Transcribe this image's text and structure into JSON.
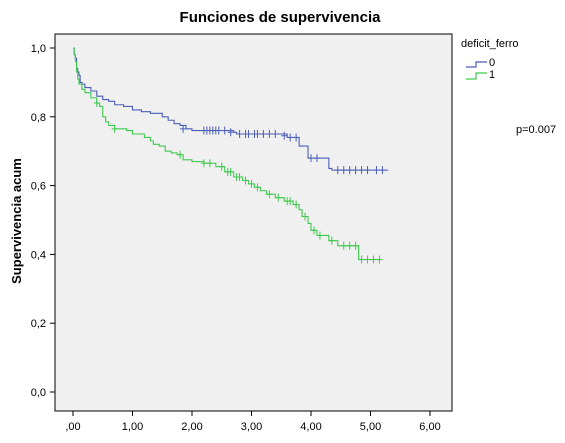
{
  "chart_data": {
    "type": "line",
    "title": "Funciones de supervivencia",
    "xlabel": "",
    "ylabel": "Supervivencia acum",
    "xlim": [
      0,
      6
    ],
    "ylim": [
      0,
      1
    ],
    "xticks": [
      0,
      1,
      2,
      3,
      4,
      5,
      6
    ],
    "xtick_labels": [
      ",00",
      "1,00",
      "2,00",
      "3,00",
      "4,00",
      "5,00",
      "6,00"
    ],
    "yticks": [
      0,
      0.2,
      0.4,
      0.6,
      0.8,
      1.0
    ],
    "ytick_labels": [
      "0,0",
      "0,2",
      "0,4",
      "0,6",
      "0,8",
      "1,0"
    ],
    "grid": false,
    "plot_background": "#f0f0f0",
    "legend": {
      "title": "deficit_ferro",
      "placement": "top-right"
    },
    "annotation": "p=0.007",
    "series": [
      {
        "name": "0",
        "color": "#4a5fb8",
        "steps": [
          [
            0,
            1.0
          ],
          [
            0.02,
            0.98
          ],
          [
            0.04,
            0.97
          ],
          [
            0.06,
            0.94
          ],
          [
            0.08,
            0.93
          ],
          [
            0.1,
            0.92
          ],
          [
            0.12,
            0.9
          ],
          [
            0.15,
            0.895
          ],
          [
            0.2,
            0.885
          ],
          [
            0.3,
            0.875
          ],
          [
            0.4,
            0.86
          ],
          [
            0.5,
            0.85
          ],
          [
            0.6,
            0.845
          ],
          [
            0.7,
            0.835
          ],
          [
            0.85,
            0.83
          ],
          [
            1.0,
            0.82
          ],
          [
            1.15,
            0.815
          ],
          [
            1.3,
            0.81
          ],
          [
            1.5,
            0.8
          ],
          [
            1.6,
            0.79
          ],
          [
            1.7,
            0.78
          ],
          [
            1.8,
            0.775
          ],
          [
            1.9,
            0.765
          ],
          [
            2.0,
            0.76
          ],
          [
            2.7,
            0.755
          ],
          [
            2.75,
            0.75
          ],
          [
            3.6,
            0.74
          ],
          [
            3.8,
            0.715
          ],
          [
            3.95,
            0.68
          ],
          [
            4.3,
            0.65
          ],
          [
            4.35,
            0.645
          ],
          [
            5.3,
            0.645
          ]
        ],
        "censored": [
          [
            1.85,
            0.765
          ],
          [
            2.2,
            0.76
          ],
          [
            2.25,
            0.76
          ],
          [
            2.3,
            0.76
          ],
          [
            2.35,
            0.76
          ],
          [
            2.4,
            0.76
          ],
          [
            2.45,
            0.76
          ],
          [
            2.55,
            0.76
          ],
          [
            2.65,
            0.755
          ],
          [
            2.8,
            0.75
          ],
          [
            2.9,
            0.75
          ],
          [
            2.95,
            0.75
          ],
          [
            3.05,
            0.75
          ],
          [
            3.1,
            0.75
          ],
          [
            3.2,
            0.75
          ],
          [
            3.3,
            0.75
          ],
          [
            3.4,
            0.75
          ],
          [
            3.55,
            0.745
          ],
          [
            3.65,
            0.74
          ],
          [
            3.75,
            0.74
          ],
          [
            4.0,
            0.68
          ],
          [
            4.1,
            0.68
          ],
          [
            4.45,
            0.645
          ],
          [
            4.55,
            0.645
          ],
          [
            4.65,
            0.645
          ],
          [
            4.75,
            0.645
          ],
          [
            4.85,
            0.645
          ],
          [
            4.95,
            0.645
          ],
          [
            5.1,
            0.645
          ],
          [
            5.2,
            0.645
          ]
        ]
      },
      {
        "name": "1",
        "color": "#3fc94f",
        "steps": [
          [
            0,
            1.0
          ],
          [
            0.02,
            0.98
          ],
          [
            0.04,
            0.96
          ],
          [
            0.06,
            0.93
          ],
          [
            0.08,
            0.91
          ],
          [
            0.1,
            0.895
          ],
          [
            0.15,
            0.88
          ],
          [
            0.2,
            0.87
          ],
          [
            0.3,
            0.855
          ],
          [
            0.4,
            0.84
          ],
          [
            0.45,
            0.83
          ],
          [
            0.5,
            0.8
          ],
          [
            0.55,
            0.785
          ],
          [
            0.6,
            0.775
          ],
          [
            0.7,
            0.765
          ],
          [
            0.9,
            0.76
          ],
          [
            1.0,
            0.75
          ],
          [
            1.2,
            0.74
          ],
          [
            1.3,
            0.73
          ],
          [
            1.35,
            0.72
          ],
          [
            1.45,
            0.715
          ],
          [
            1.55,
            0.7
          ],
          [
            1.65,
            0.695
          ],
          [
            1.75,
            0.69
          ],
          [
            1.85,
            0.675
          ],
          [
            2.0,
            0.67
          ],
          [
            2.2,
            0.665
          ],
          [
            2.4,
            0.655
          ],
          [
            2.55,
            0.64
          ],
          [
            2.7,
            0.625
          ],
          [
            2.85,
            0.615
          ],
          [
            2.95,
            0.605
          ],
          [
            3.05,
            0.595
          ],
          [
            3.15,
            0.585
          ],
          [
            3.25,
            0.575
          ],
          [
            3.4,
            0.565
          ],
          [
            3.55,
            0.555
          ],
          [
            3.7,
            0.545
          ],
          [
            3.8,
            0.53
          ],
          [
            3.85,
            0.51
          ],
          [
            3.95,
            0.49
          ],
          [
            4.0,
            0.47
          ],
          [
            4.1,
            0.455
          ],
          [
            4.3,
            0.44
          ],
          [
            4.45,
            0.425
          ],
          [
            4.8,
            0.385
          ],
          [
            5.2,
            0.385
          ]
        ],
        "censored": [
          [
            0.4,
            0.84
          ],
          [
            0.7,
            0.765
          ],
          [
            1.8,
            0.69
          ],
          [
            2.2,
            0.665
          ],
          [
            2.3,
            0.665
          ],
          [
            2.5,
            0.655
          ],
          [
            2.6,
            0.64
          ],
          [
            2.65,
            0.64
          ],
          [
            2.75,
            0.625
          ],
          [
            2.8,
            0.625
          ],
          [
            2.9,
            0.615
          ],
          [
            3.0,
            0.605
          ],
          [
            3.1,
            0.595
          ],
          [
            3.3,
            0.575
          ],
          [
            3.45,
            0.565
          ],
          [
            3.6,
            0.555
          ],
          [
            3.65,
            0.555
          ],
          [
            3.75,
            0.545
          ],
          [
            3.9,
            0.51
          ],
          [
            4.05,
            0.47
          ],
          [
            4.15,
            0.455
          ],
          [
            4.35,
            0.44
          ],
          [
            4.55,
            0.425
          ],
          [
            4.65,
            0.425
          ],
          [
            4.75,
            0.425
          ],
          [
            4.85,
            0.385
          ],
          [
            4.95,
            0.385
          ],
          [
            5.05,
            0.385
          ],
          [
            5.15,
            0.385
          ]
        ]
      }
    ]
  }
}
